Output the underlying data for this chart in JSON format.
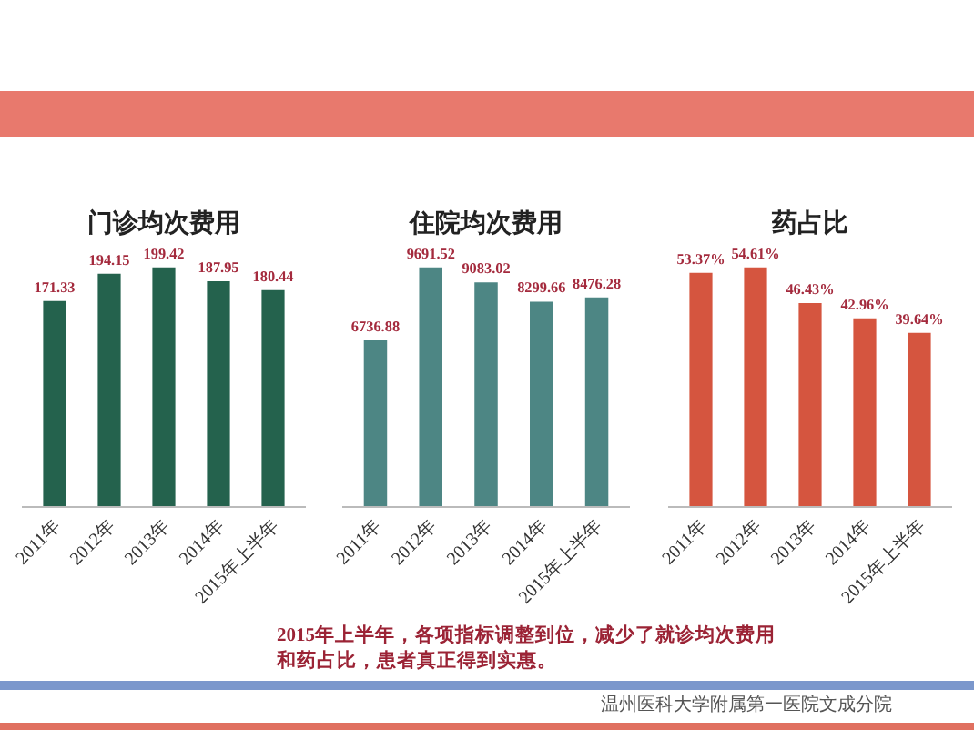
{
  "chart_data": [
    {
      "type": "bar",
      "title": "门诊均次费用",
      "categories": [
        "2011年",
        "2012年",
        "2013年",
        "2014年",
        "2015年上半年"
      ],
      "values": [
        171.33,
        194.15,
        199.42,
        187.95,
        180.44
      ],
      "color": "#24624d",
      "data_labels": true,
      "tick_labels": "x"
    },
    {
      "type": "bar",
      "title": "住院均次费用",
      "categories": [
        "2011年",
        "2012年",
        "2013年",
        "2014年",
        "2015年上半年"
      ],
      "values": [
        6736.88,
        9691.52,
        9083.02,
        8299.66,
        8476.28
      ],
      "color": "#4d8684",
      "data_labels": true,
      "tick_labels": "x"
    },
    {
      "type": "bar",
      "title": "药占比",
      "categories": [
        "2011年",
        "2012年",
        "2013年",
        "2014年",
        "2015年上半年"
      ],
      "values": [
        53.37,
        54.61,
        46.43,
        42.96,
        39.64
      ],
      "value_labels": [
        "53.37%",
        "54.61%",
        "46.43%",
        "42.96%",
        "39.64%"
      ],
      "color": "#d5553f",
      "tick_labels": "x",
      "annotations": [
        "2015年上半年，各项指标调整到位，减少了就诊均次费用和药占比，患者真正得到实惠。",
        "温州医科大学附属第一医院文成分院"
      ]
    }
  ]
}
